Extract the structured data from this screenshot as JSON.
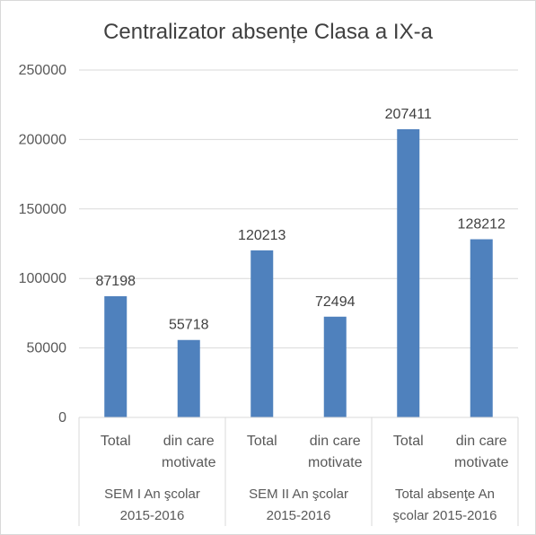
{
  "chart_data": {
    "type": "bar",
    "title": "Centralizator absențe Clasa a IX-a",
    "groups": [
      {
        "label": [
          "SEM I An şcolar",
          "2015-2016"
        ],
        "categories": [
          [
            "Total"
          ],
          [
            "din care",
            "motivate"
          ]
        ]
      },
      {
        "label": [
          "SEM II An şcolar",
          "2015-2016"
        ],
        "categories": [
          [
            "Total"
          ],
          [
            "din care",
            "motivate"
          ]
        ]
      },
      {
        "label": [
          "Total absenţe An",
          "şcolar 2015-2016"
        ],
        "categories": [
          [
            "Total"
          ],
          [
            "din care",
            "motivate"
          ]
        ]
      }
    ],
    "values": [
      87198,
      55718,
      120213,
      72494,
      207411,
      128212
    ],
    "ylim": [
      0,
      250000
    ],
    "yticks": [
      0,
      50000,
      100000,
      150000,
      200000,
      250000
    ],
    "grid": true,
    "legend": "none",
    "bar_color": "#4f81bd"
  }
}
